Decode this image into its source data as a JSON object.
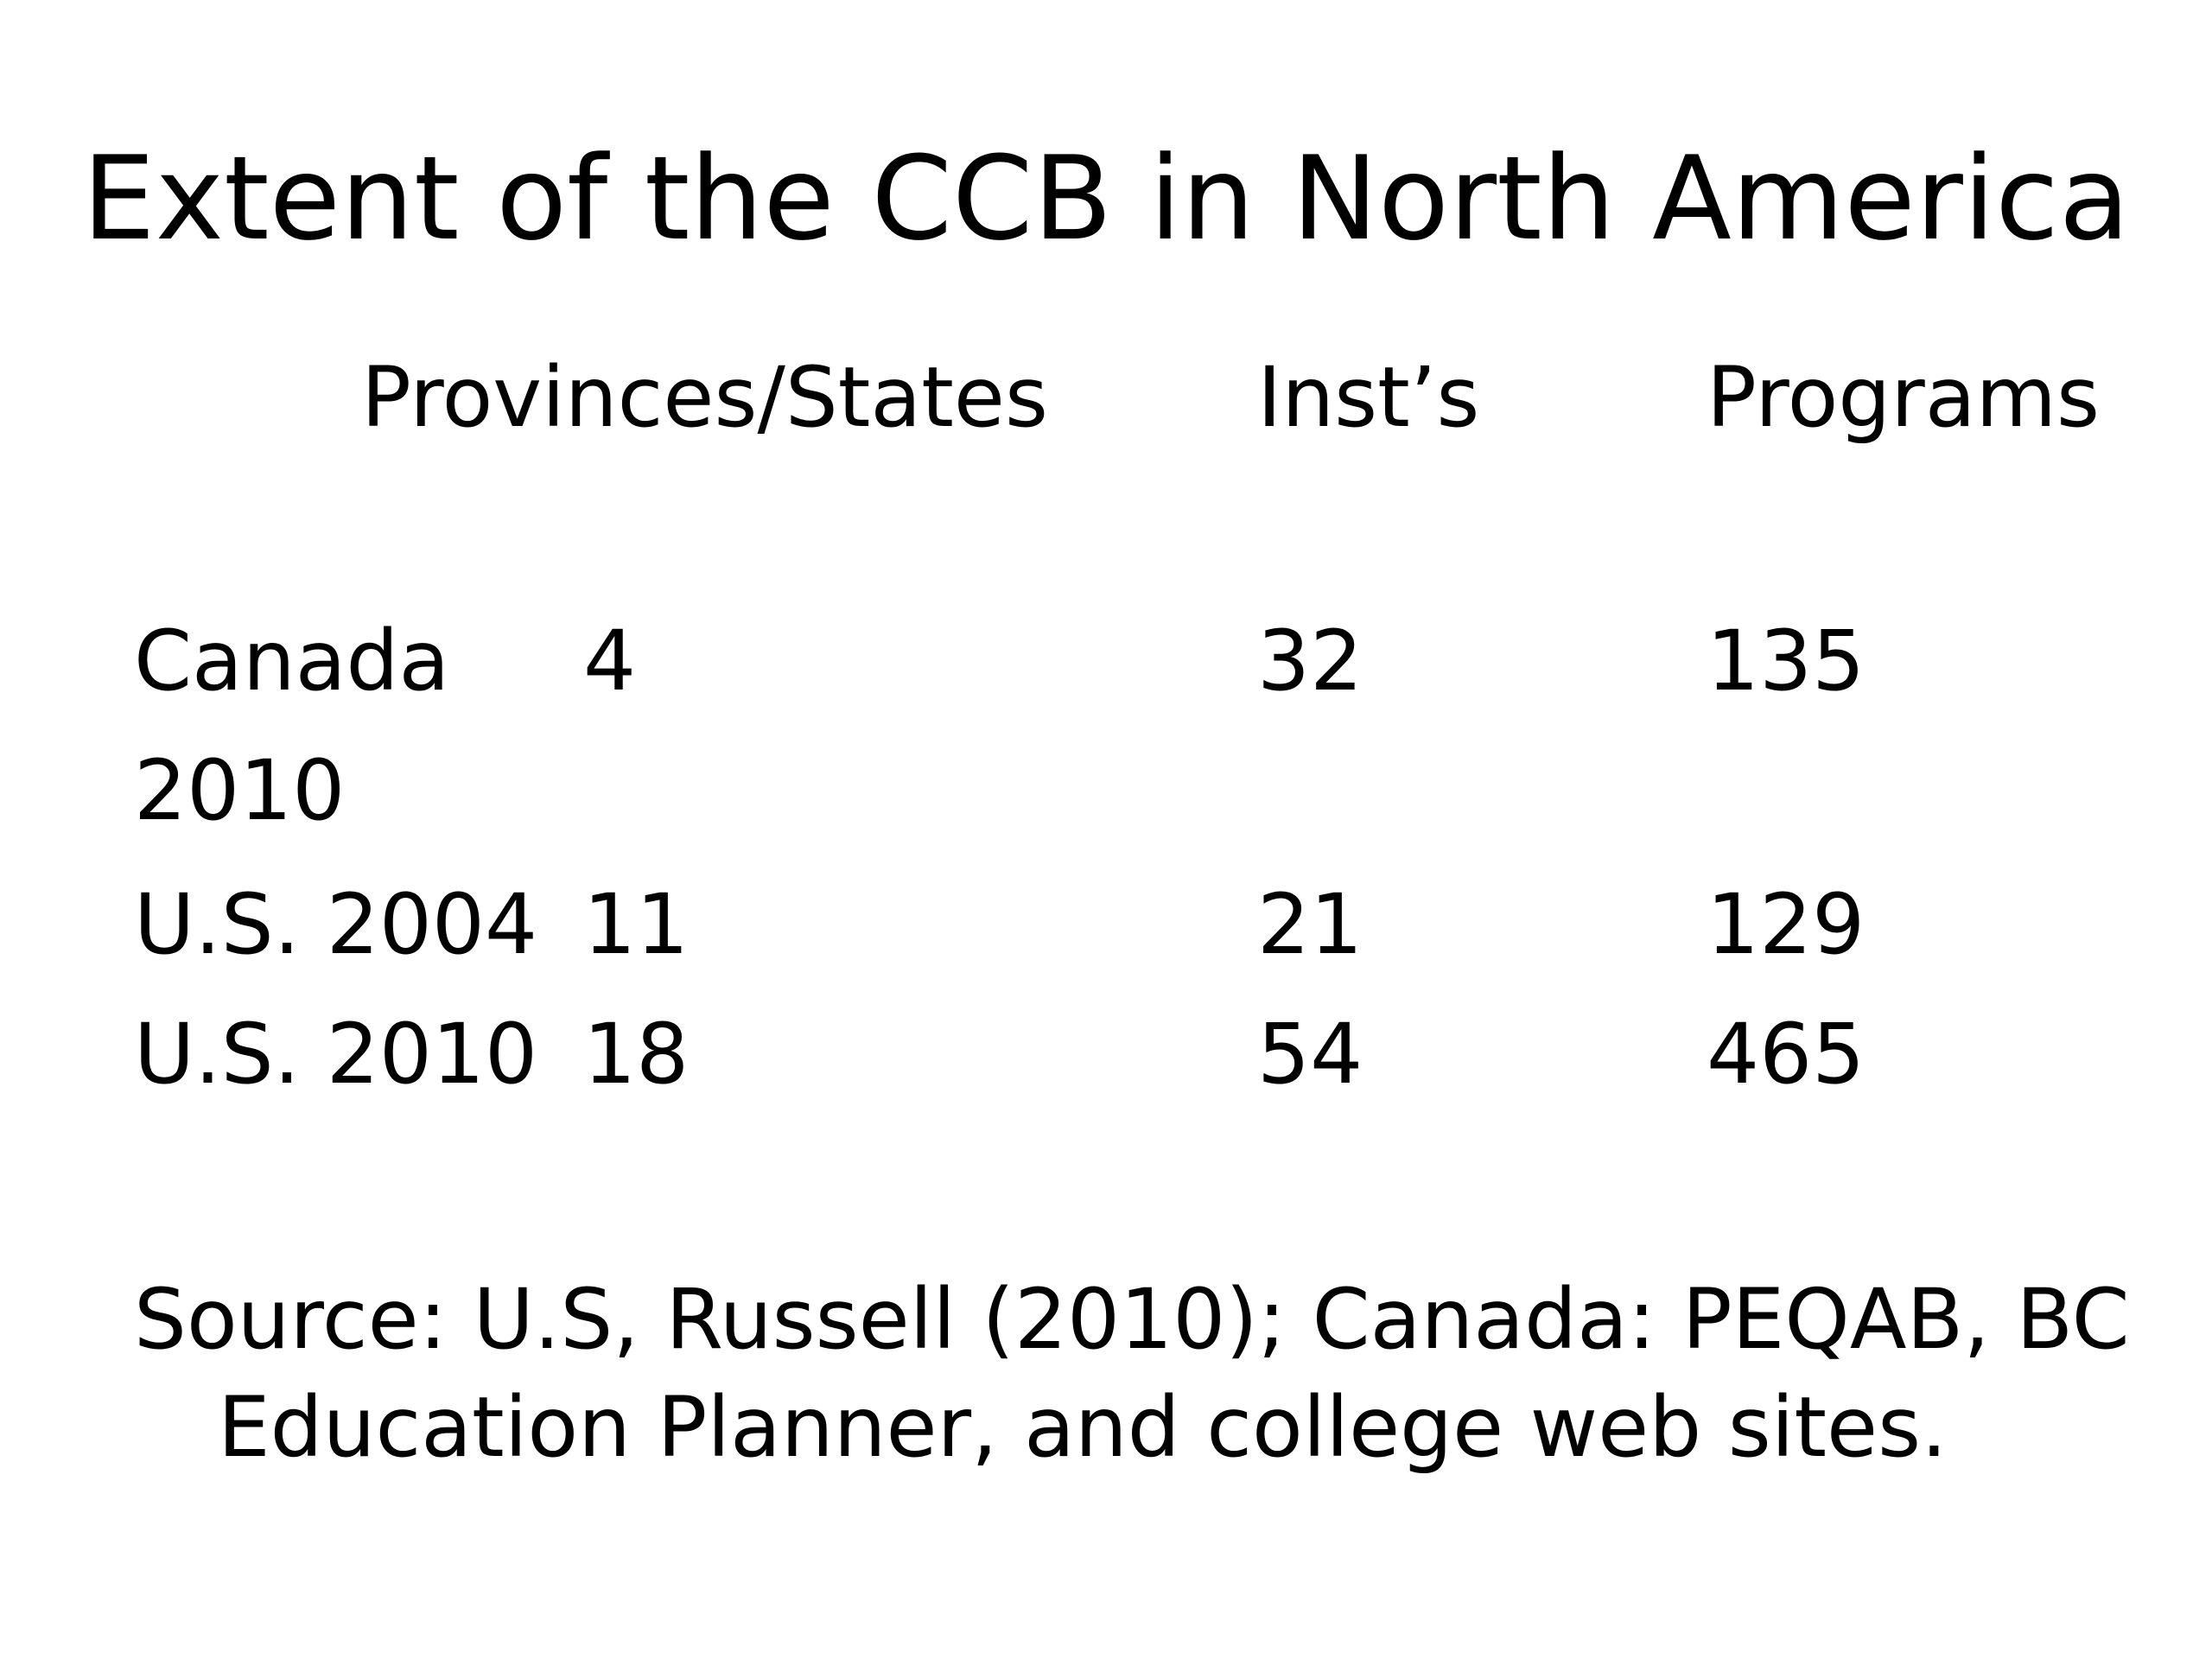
{
  "slide": {
    "title": "Extent of the CCB in North America",
    "table": {
      "headers": [
        "Provinces/States",
        "Inst’s",
        "Programs"
      ],
      "rows": [
        {
          "label": "Canada 2010",
          "provinces_states": "4",
          "insts": "32",
          "programs": "135"
        },
        {
          "label": "U.S. 2004",
          "provinces_states": "11",
          "insts": "21",
          "programs": "129"
        },
        {
          "label": "U.S. 2010",
          "provinces_states": "18",
          "insts": "54",
          "programs": "465"
        }
      ]
    },
    "source": "Source: U.S, Russell (2010); Canada: PEQAB, BC Education Planner, and college web sites."
  }
}
